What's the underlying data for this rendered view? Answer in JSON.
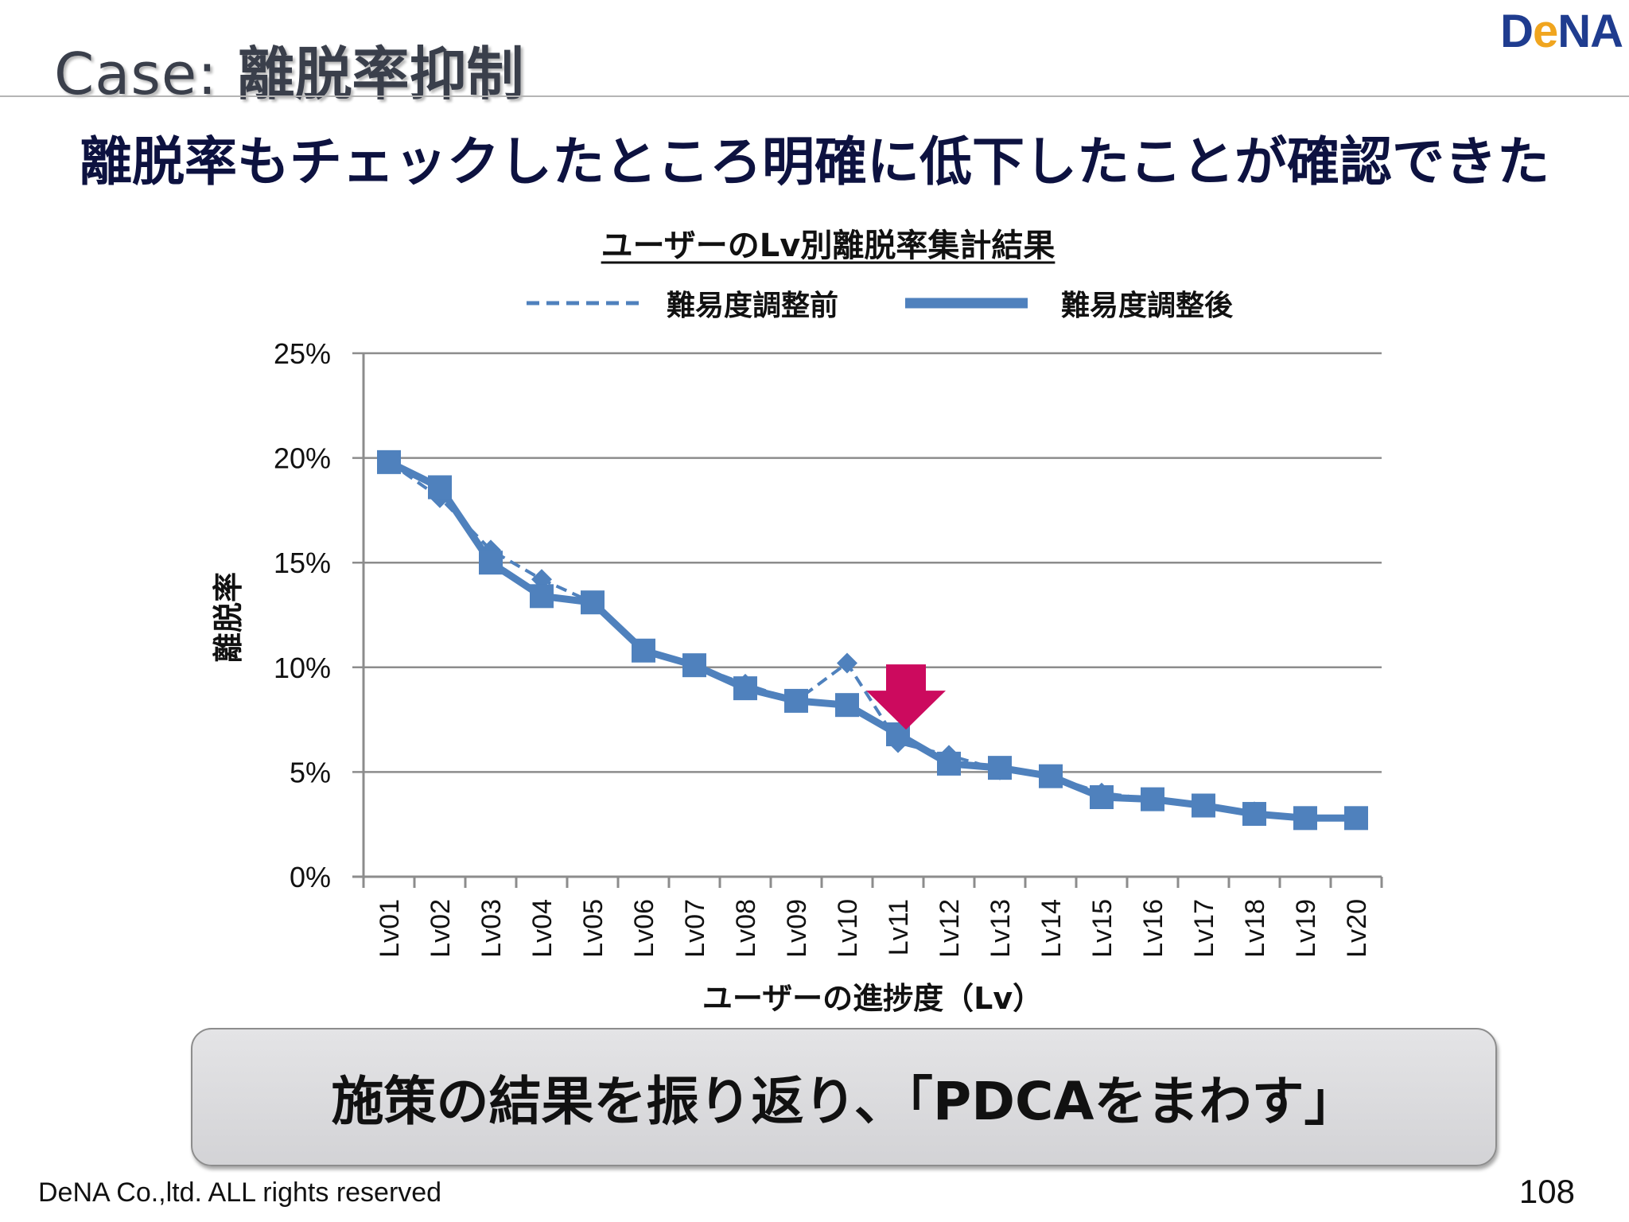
{
  "slide": {
    "title_prefix": "Case:",
    "title_main": "離脱率抑制",
    "headline": "離脱率もチェックしたところ明確に低下したことが確認できた",
    "logo": {
      "part1": "D",
      "part2": "e",
      "part3": "NA"
    },
    "callout": "施策の結果を振り返り、「PDCAをまわす」",
    "footer_left": "DeNA Co.,ltd. ALL rights reserved",
    "page_number": "108"
  },
  "colors": {
    "series": "#4f81bd",
    "grid": "#8c8c8c",
    "arrow": "#cc0a5e",
    "text": "#111111"
  },
  "chart_data": {
    "type": "line",
    "title": "ユーザーのLv別離脱率集計結果",
    "xlabel": "ユーザーの進捗度（Lv）",
    "ylabel": "離脱率",
    "ylim": [
      0,
      25
    ],
    "ytick_step": 5,
    "y_unit": "%",
    "grid": true,
    "legend_position": "top",
    "categories": [
      "Lv01",
      "Lv02",
      "Lv03",
      "Lv04",
      "Lv05",
      "Lv06",
      "Lv07",
      "Lv08",
      "Lv09",
      "Lv10",
      "Lv11",
      "Lv12",
      "Lv13",
      "Lv14",
      "Lv15",
      "Lv16",
      "Lv17",
      "Lv18",
      "Lv19",
      "Lv20"
    ],
    "series": [
      {
        "name": "難易度調整前",
        "style": "dashed",
        "marker": "diamond",
        "values": [
          19.8,
          18.1,
          15.6,
          14.2,
          13.1,
          10.8,
          10.1,
          9.2,
          8.4,
          10.2,
          6.4,
          5.8,
          5.1,
          4.8,
          4.0,
          3.7,
          3.4,
          3.1,
          2.8,
          2.8
        ]
      },
      {
        "name": "難易度調整後",
        "style": "solid",
        "marker": "square",
        "values": [
          19.8,
          18.6,
          15.0,
          13.4,
          13.1,
          10.8,
          10.1,
          9.0,
          8.4,
          8.2,
          6.8,
          5.4,
          5.2,
          4.8,
          3.8,
          3.7,
          3.4,
          3.0,
          2.8,
          2.8
        ]
      }
    ],
    "annotation": {
      "type": "down-arrow",
      "category": "Lv11",
      "value": 9.0
    }
  }
}
